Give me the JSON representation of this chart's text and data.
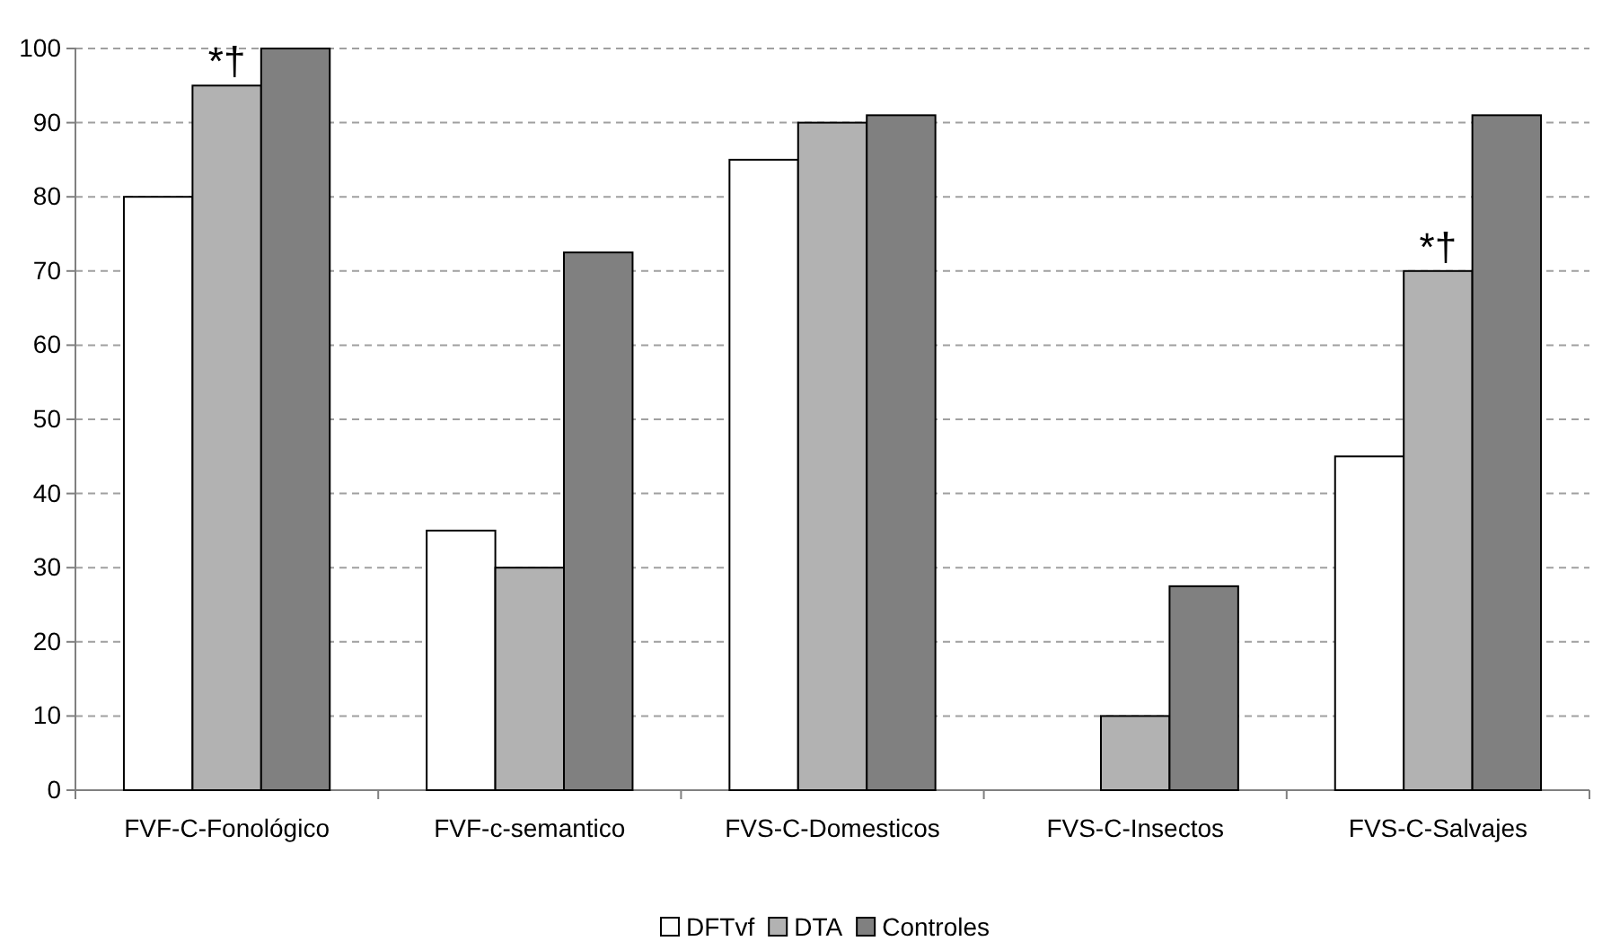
{
  "chart_data": {
    "type": "bar",
    "categories": [
      "FVF-C-Fonológico",
      "FVF-c-semantico",
      "FVS-C-Domesticos",
      "FVS-C-Insectos",
      "FVS-C-Salvajes"
    ],
    "series": [
      {
        "name": "DFTvf",
        "color": "#ffffff",
        "values": [
          80,
          35,
          85,
          0,
          45
        ]
      },
      {
        "name": "DTA",
        "color": "#b2b2b2",
        "values": [
          95,
          30,
          90,
          10,
          70
        ]
      },
      {
        "name": "Controles",
        "color": "#808080",
        "values": [
          100,
          72.5,
          91,
          27.5,
          91
        ]
      }
    ],
    "ylim": [
      0,
      100
    ],
    "yticks": [
      0,
      10,
      20,
      30,
      40,
      50,
      60,
      70,
      80,
      90,
      100
    ],
    "grid": "y",
    "legend": "bottom",
    "annotations": [
      {
        "text": "*†",
        "x": "FVF-C-Fonológico",
        "y": 95
      },
      {
        "text": "*†",
        "x": "FVS-C-Salvajes",
        "y": 70
      }
    ]
  }
}
